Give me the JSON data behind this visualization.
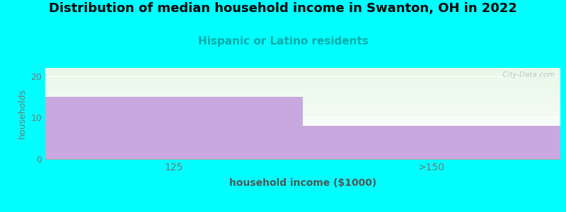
{
  "title": "Distribution of median household income in Swanton, OH in 2022",
  "subtitle": "Hispanic or Latino residents",
  "xlabel": "household income ($1000)",
  "ylabel": "households",
  "categories": [
    "125",
    ">150"
  ],
  "values": [
    15,
    8
  ],
  "bar_color": "#c9a8e0",
  "bar_edgecolor": "#c9a8e0",
  "background_color": "#00ffff",
  "plot_bg_top": "#e8f8e8",
  "plot_bg_bottom": "#ffffff",
  "title_fontsize": 13,
  "subtitle_fontsize": 11,
  "subtitle_color": "#00aaaa",
  "ylabel_color": "#777777",
  "xlabel_color": "#555555",
  "tick_color": "#777777",
  "yticks": [
    0,
    10,
    20
  ],
  "ylim": [
    0,
    22
  ],
  "watermark": " City-Data.com",
  "bar_width": 1.0
}
